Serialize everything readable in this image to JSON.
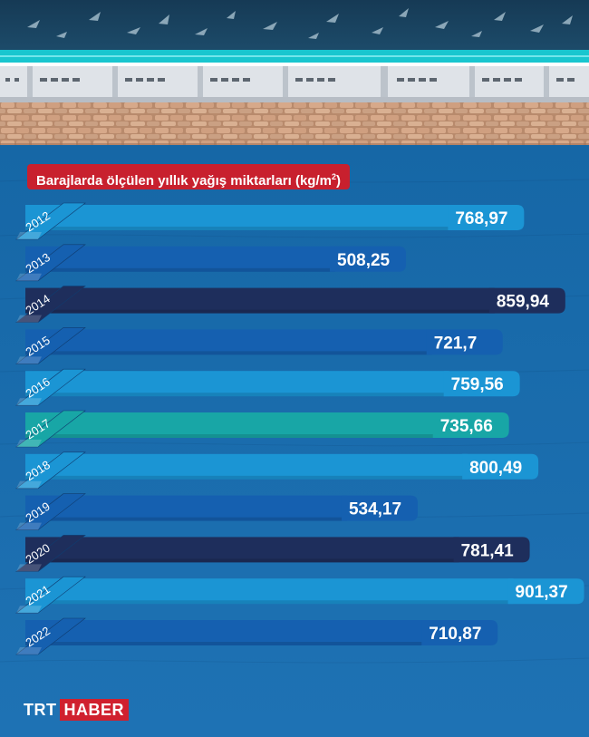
{
  "chart_data": {
    "type": "bar",
    "orientation": "horizontal",
    "title": "Barajlarda ölçülen yıllık yağış miktarları (kg/m",
    "title_superscript": "2",
    "title_suffix": ")",
    "categories": [
      "2012",
      "2013",
      "2014",
      "2015",
      "2016",
      "2017",
      "2018",
      "2019",
      "2020",
      "2021",
      "2022"
    ],
    "values": [
      768.97,
      508.25,
      859.94,
      721.7,
      759.56,
      735.66,
      800.49,
      534.17,
      781.41,
      901.37,
      710.87
    ],
    "value_labels": [
      "768,97",
      "508,25",
      "859,94",
      "721,7",
      "759,56",
      "735,66",
      "800,49",
      "534,17",
      "781,41",
      "901,37",
      "710,87"
    ],
    "bar_colors": [
      "#1b95d4",
      "#1560b0",
      "#1e2e5c",
      "#1560b0",
      "#1b95d4",
      "#18a6a6",
      "#1b95d4",
      "#1560b0",
      "#1e2e5c",
      "#1b95d4",
      "#1560b0"
    ],
    "grid": false,
    "legend": "none"
  },
  "branding": {
    "logo_left": "TRT",
    "logo_right": "HABER",
    "title_color": "#c8202e",
    "background_color": "#1a6aa8"
  }
}
